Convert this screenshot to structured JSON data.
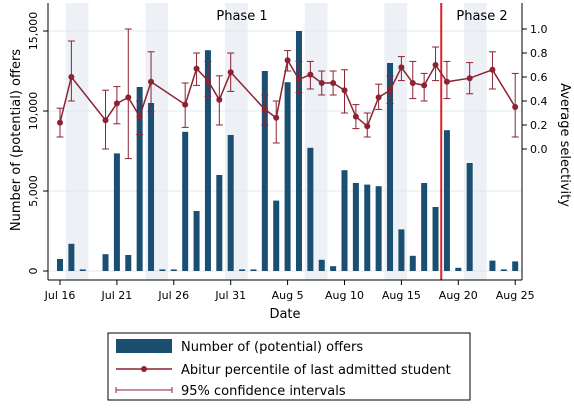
{
  "chart_data": {
    "type": "bar+line",
    "xlabel": "Date",
    "ylabel_left": "Number of (potential) offers",
    "ylabel_right": "Average selectivity",
    "x_tick_labels": [
      "Jul 16",
      "Jul 21",
      "Jul 26",
      "Jul 31",
      "Aug 5",
      "Aug 10",
      "Aug 15",
      "Aug 20",
      "Aug 25"
    ],
    "x_tick_days": [
      0,
      5,
      10,
      15,
      20,
      25,
      30,
      35,
      40
    ],
    "y_left_ticks": [
      0,
      5000,
      10000,
      15000
    ],
    "y_left_tick_labels": [
      "0",
      "5,000",
      "10,000",
      "15,000"
    ],
    "y_right_ticks": [
      0.0,
      0.2,
      0.4,
      0.6,
      0.8,
      1.0
    ],
    "y_right_tick_labels": [
      "0.0",
      "0.2",
      "0.4",
      "0.6",
      "0.8",
      "1.0"
    ],
    "phases": [
      {
        "label": "Phase 1"
      },
      {
        "label": "Phase 2"
      }
    ],
    "phase_divider_day": 33.5,
    "weekend_shading_days": [
      1,
      2,
      8,
      9,
      15,
      16,
      22,
      23,
      29,
      30,
      36,
      37
    ],
    "bars": [
      {
        "day": 0,
        "value": 750
      },
      {
        "day": 1,
        "value": 1700
      },
      {
        "day": 2,
        "value": 100
      },
      {
        "day": 4,
        "value": 1050
      },
      {
        "day": 5,
        "value": 7350
      },
      {
        "day": 6,
        "value": 1000
      },
      {
        "day": 7,
        "value": 11500
      },
      {
        "day": 8,
        "value": 10500
      },
      {
        "day": 9,
        "value": 100
      },
      {
        "day": 10,
        "value": 100
      },
      {
        "day": 11,
        "value": 8700
      },
      {
        "day": 12,
        "value": 3750
      },
      {
        "day": 13,
        "value": 13800
      },
      {
        "day": 14,
        "value": 6000
      },
      {
        "day": 15,
        "value": 8500
      },
      {
        "day": 16,
        "value": 100
      },
      {
        "day": 17,
        "value": 100
      },
      {
        "day": 18,
        "value": 12500
      },
      {
        "day": 19,
        "value": 4400
      },
      {
        "day": 20,
        "value": 11800
      },
      {
        "day": 21,
        "value": 15000
      },
      {
        "day": 22,
        "value": 7700
      },
      {
        "day": 23,
        "value": 700
      },
      {
        "day": 24,
        "value": 300
      },
      {
        "day": 25,
        "value": 6300
      },
      {
        "day": 26,
        "value": 5500
      },
      {
        "day": 27,
        "value": 5400
      },
      {
        "day": 28,
        "value": 5300
      },
      {
        "day": 29,
        "value": 13000
      },
      {
        "day": 30,
        "value": 2600
      },
      {
        "day": 31,
        "value": 950
      },
      {
        "day": 32,
        "value": 5500
      },
      {
        "day": 33,
        "value": 4000
      },
      {
        "day": 34,
        "value": 8800
      },
      {
        "day": 35,
        "value": 200
      },
      {
        "day": 36,
        "value": 6750
      },
      {
        "day": 38,
        "value": 650
      },
      {
        "day": 39,
        "value": 100
      },
      {
        "day": 40,
        "value": 600
      }
    ],
    "series": [
      {
        "name": "Abitur percentile of last admitted student",
        "color": "#8c2232",
        "points": [
          {
            "day": 0,
            "y": 0.22,
            "lo": 0.1,
            "hi": 0.34
          },
          {
            "day": 1,
            "y": 0.6,
            "lo": 0.4,
            "hi": 0.9
          },
          {
            "day": 4,
            "y": 0.24,
            "lo": 0.0,
            "hi": 0.49
          },
          {
            "day": 5,
            "y": 0.38,
            "lo": 0.21,
            "hi": 0.52
          },
          {
            "day": 6,
            "y": 0.43,
            "lo": -0.08,
            "hi": 1.0
          },
          {
            "day": 7,
            "y": 0.27,
            "lo": 0.12,
            "hi": 0.4
          },
          {
            "day": 8,
            "y": 0.56,
            "lo": 0.31,
            "hi": 0.81
          },
          {
            "day": 11,
            "y": 0.37,
            "lo": 0.18,
            "hi": 0.55
          },
          {
            "day": 12,
            "y": 0.67,
            "lo": 0.53,
            "hi": 0.8
          },
          {
            "day": 13,
            "y": 0.57,
            "lo": 0.44,
            "hi": 0.73
          },
          {
            "day": 14,
            "y": 0.41,
            "lo": 0.2,
            "hi": 0.61
          },
          {
            "day": 15,
            "y": 0.64,
            "lo": 0.48,
            "hi": 0.8
          },
          {
            "day": 18,
            "y": 0.33,
            "lo": 0.2,
            "hi": 0.45
          },
          {
            "day": 19,
            "y": 0.26,
            "lo": 0.05,
            "hi": 0.4
          },
          {
            "day": 20,
            "y": 0.74,
            "lo": 0.65,
            "hi": 0.82
          },
          {
            "day": 21,
            "y": 0.58,
            "lo": 0.47,
            "hi": 0.73
          },
          {
            "day": 22,
            "y": 0.62,
            "lo": 0.5,
            "hi": 0.73
          },
          {
            "day": 23,
            "y": 0.55,
            "lo": 0.45,
            "hi": 0.65
          },
          {
            "day": 24,
            "y": 0.55,
            "lo": 0.45,
            "hi": 0.65
          },
          {
            "day": 25,
            "y": 0.49,
            "lo": 0.3,
            "hi": 0.66
          },
          {
            "day": 26,
            "y": 0.27,
            "lo": 0.17,
            "hi": 0.37
          },
          {
            "day": 27,
            "y": 0.19,
            "lo": 0.1,
            "hi": 0.3
          },
          {
            "day": 28,
            "y": 0.43,
            "lo": 0.33,
            "hi": 0.54
          },
          {
            "day": 29,
            "y": 0.49,
            "lo": 0.38,
            "hi": 0.61
          },
          {
            "day": 30,
            "y": 0.68,
            "lo": 0.57,
            "hi": 0.77
          },
          {
            "day": 31,
            "y": 0.55,
            "lo": 0.42,
            "hi": 0.73
          },
          {
            "day": 32,
            "y": 0.53,
            "lo": 0.4,
            "hi": 0.63
          },
          {
            "day": 33,
            "y": 0.7,
            "lo": 0.57,
            "hi": 0.85
          },
          {
            "day": 34,
            "y": 0.56,
            "lo": 0.42,
            "hi": 0.73
          },
          {
            "day": 36,
            "y": 0.59,
            "lo": 0.46,
            "hi": 0.72
          },
          {
            "day": 38,
            "y": 0.66,
            "lo": 0.5,
            "hi": 0.81
          },
          {
            "day": 40,
            "y": 0.35,
            "lo": 0.1,
            "hi": 0.63
          }
        ]
      }
    ],
    "bar_color": "#1a4f72",
    "phase_divider_color": "#d9232b",
    "shade_color": "#edf0f5",
    "legend": {
      "placement": "bottom",
      "items": [
        {
          "kind": "bar",
          "label": "Number of (potential) offers"
        },
        {
          "kind": "line",
          "label": "Abitur percentile of last admitted student"
        },
        {
          "kind": "ci",
          "label": "95% confidence intervals"
        }
      ]
    }
  }
}
